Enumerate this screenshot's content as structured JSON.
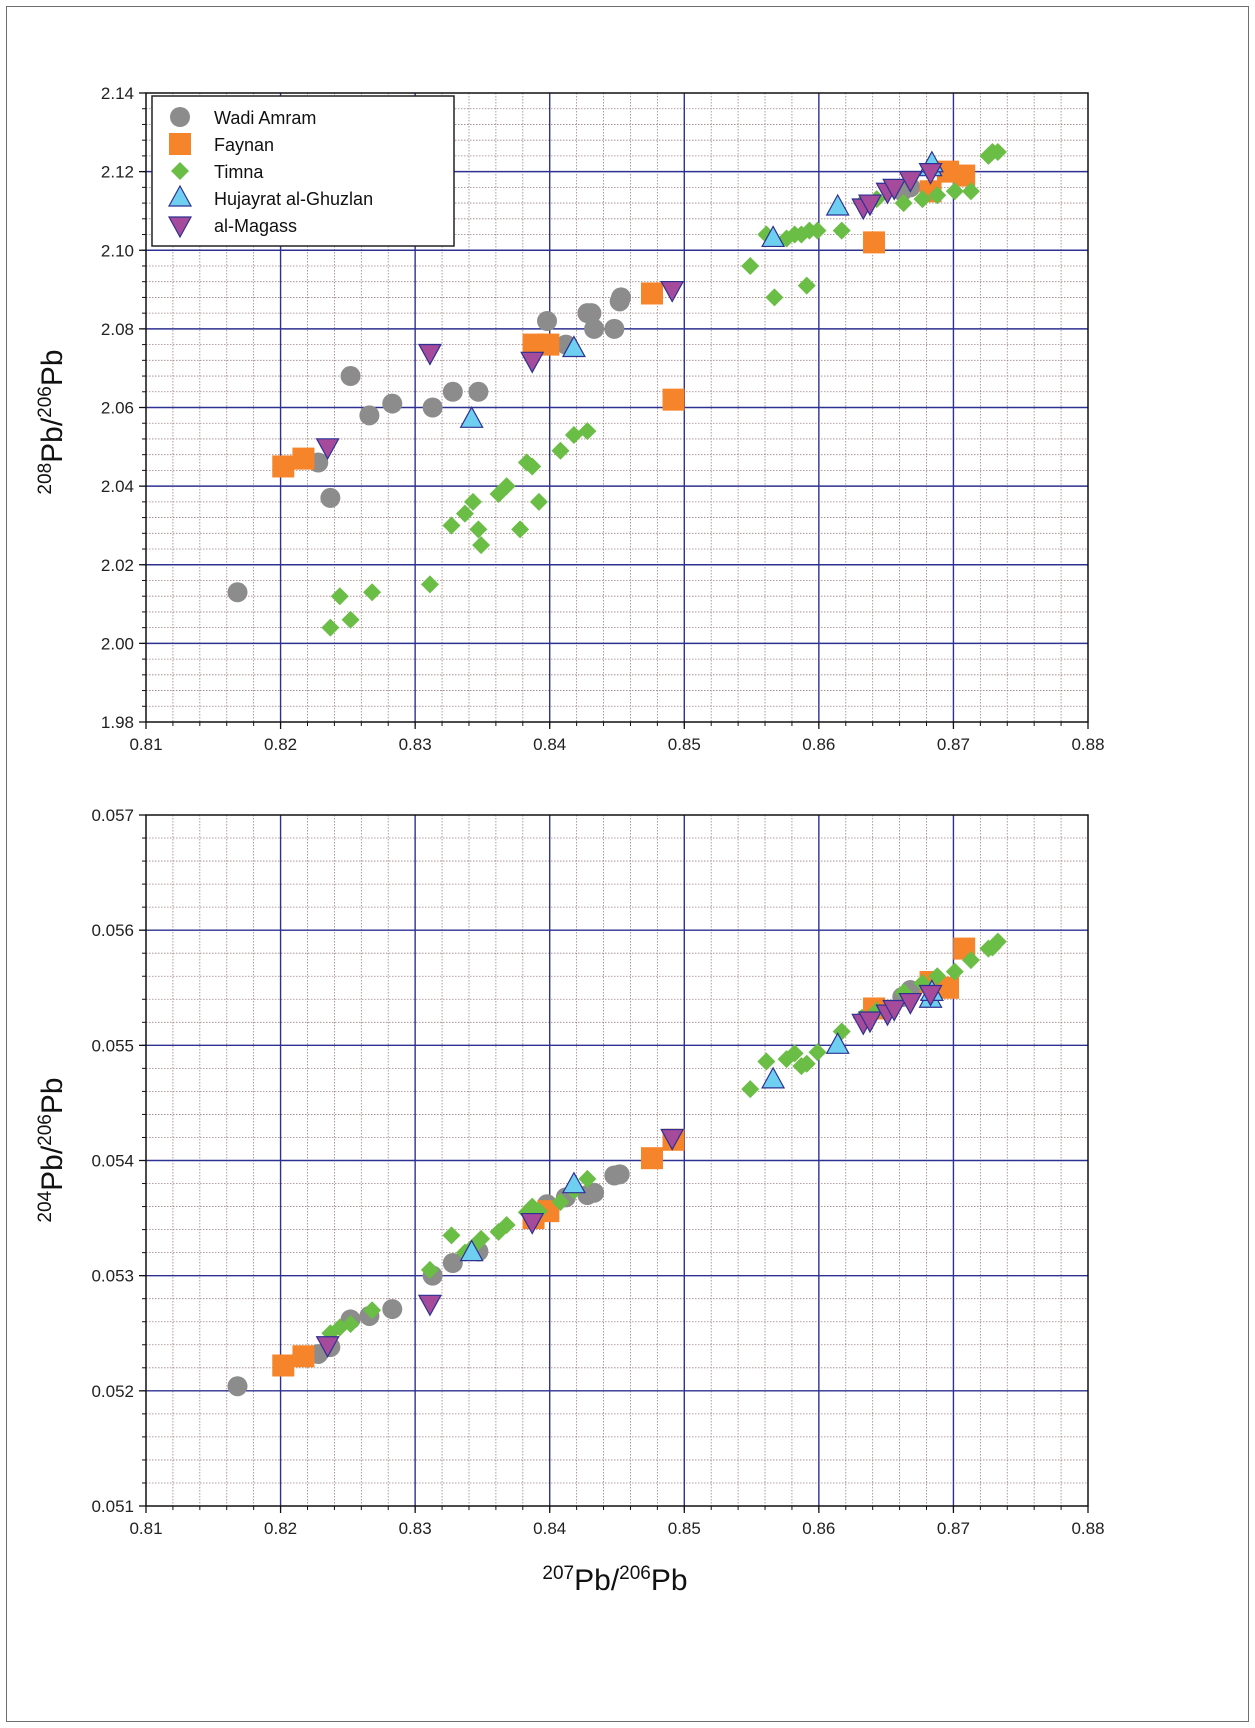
{
  "colors": {
    "wadi_amram": "#8c8c8c",
    "faynan": "#f5842a",
    "timna": "#6abd45",
    "hujayrat": "#6ecff0",
    "magass": "#a64a9b",
    "major_grid": "#2e3192",
    "minor_grid": "#a08080"
  },
  "x_label": {
    "sup1": "207",
    "base1": "Pb/",
    "sup2": "206",
    "base2": "Pb"
  },
  "chart_data": [
    {
      "type": "scatter",
      "name": "top",
      "xlabel": "",
      "ylabel": {
        "sup1": "208",
        "base1": "Pb/",
        "sup2": "206",
        "base2": "Pb"
      },
      "xlim": [
        0.81,
        0.88
      ],
      "ylim": [
        1.98,
        2.14
      ],
      "xticks": [
        "0.81",
        "0.82",
        "0.83",
        "0.84",
        "0.85",
        "0.86",
        "0.87",
        "0.88"
      ],
      "yticks": [
        "1.98",
        "2.00",
        "2.02",
        "2.04",
        "2.06",
        "2.08",
        "2.10",
        "2.12",
        "2.14"
      ],
      "grid": true,
      "legend_position": "top-left",
      "series": [
        {
          "name": "Wadi Amram",
          "marker": "circle",
          "color_key": "wadi_amram",
          "points": [
            [
              0.8168,
              2.013
            ],
            [
              0.8228,
              2.046
            ],
            [
              0.8237,
              2.037
            ],
            [
              0.8252,
              2.068
            ],
            [
              0.8266,
              2.058
            ],
            [
              0.8283,
              2.061
            ],
            [
              0.8313,
              2.06
            ],
            [
              0.8328,
              2.064
            ],
            [
              0.8347,
              2.064
            ],
            [
              0.8398,
              2.082
            ],
            [
              0.8412,
              2.076
            ],
            [
              0.8428,
              2.084
            ],
            [
              0.8431,
              2.084
            ],
            [
              0.8433,
              2.08
            ],
            [
              0.8448,
              2.08
            ],
            [
              0.8452,
              2.087
            ],
            [
              0.8453,
              2.088
            ],
            [
              0.8662,
              2.115
            ],
            [
              0.8668,
              2.116
            ]
          ]
        },
        {
          "name": "Faynan",
          "marker": "square",
          "color_key": "faynan",
          "points": [
            [
              0.8202,
              2.045
            ],
            [
              0.8217,
              2.047
            ],
            [
              0.8388,
              2.076
            ],
            [
              0.8399,
              2.076
            ],
            [
              0.8476,
              2.089
            ],
            [
              0.8492,
              2.062
            ],
            [
              0.8641,
              2.102
            ],
            [
              0.8683,
              2.115
            ],
            [
              0.8696,
              2.12
            ],
            [
              0.8708,
              2.119
            ]
          ]
        },
        {
          "name": "Timna",
          "marker": "diamond",
          "color_key": "timna",
          "points": [
            [
              0.8237,
              2.004
            ],
            [
              0.8244,
              2.012
            ],
            [
              0.8252,
              2.006
            ],
            [
              0.8268,
              2.013
            ],
            [
              0.8311,
              2.015
            ],
            [
              0.8327,
              2.03
            ],
            [
              0.8337,
              2.033
            ],
            [
              0.8343,
              2.036
            ],
            [
              0.8347,
              2.029
            ],
            [
              0.8349,
              2.025
            ],
            [
              0.8362,
              2.038
            ],
            [
              0.8368,
              2.04
            ],
            [
              0.8378,
              2.029
            ],
            [
              0.8383,
              2.046
            ],
            [
              0.8387,
              2.045
            ],
            [
              0.8392,
              2.036
            ],
            [
              0.8408,
              2.049
            ],
            [
              0.8418,
              2.053
            ],
            [
              0.8428,
              2.054
            ],
            [
              0.8549,
              2.096
            ],
            [
              0.8561,
              2.104
            ],
            [
              0.8567,
              2.088
            ],
            [
              0.8576,
              2.103
            ],
            [
              0.8582,
              2.104
            ],
            [
              0.8587,
              2.104
            ],
            [
              0.8591,
              2.091
            ],
            [
              0.8593,
              2.105
            ],
            [
              0.8599,
              2.105
            ],
            [
              0.8617,
              2.105
            ],
            [
              0.8632,
              2.112
            ],
            [
              0.8643,
              2.113
            ],
            [
              0.8663,
              2.112
            ],
            [
              0.8677,
              2.113
            ],
            [
              0.8688,
              2.114
            ],
            [
              0.8701,
              2.115
            ],
            [
              0.8713,
              2.115
            ],
            [
              0.8726,
              2.124
            ],
            [
              0.8729,
              2.125
            ],
            [
              0.8733,
              2.125
            ]
          ]
        },
        {
          "name": "Hujayrat al-Ghuzlan",
          "marker": "triangle-up",
          "color_key": "hujayrat",
          "points": [
            [
              0.8342,
              2.057
            ],
            [
              0.8418,
              2.075
            ],
            [
              0.8566,
              2.103
            ],
            [
              0.8614,
              2.111
            ],
            [
              0.8683,
              2.121
            ],
            [
              0.8684,
              2.122
            ]
          ]
        },
        {
          "name": "al-Magass",
          "marker": "triangle-down",
          "color_key": "magass",
          "points": [
            [
              0.8235,
              2.05
            ],
            [
              0.8311,
              2.074
            ],
            [
              0.8387,
              2.072
            ],
            [
              0.8491,
              2.09
            ],
            [
              0.8633,
              2.111
            ],
            [
              0.8638,
              2.112
            ],
            [
              0.8651,
              2.115
            ],
            [
              0.8656,
              2.116
            ],
            [
              0.8668,
              2.118
            ],
            [
              0.8683,
              2.12
            ]
          ]
        }
      ]
    },
    {
      "type": "scatter",
      "name": "bottom",
      "xlabel": "",
      "ylabel": {
        "sup1": "204",
        "base1": "Pb/",
        "sup2": "206",
        "base2": "Pb"
      },
      "xlim": [
        0.81,
        0.88
      ],
      "ylim": [
        0.051,
        0.057
      ],
      "xticks": [
        "0.81",
        "0.82",
        "0.83",
        "0.84",
        "0.85",
        "0.86",
        "0.87",
        "0.88"
      ],
      "yticks": [
        "0.051",
        "0.052",
        "0.053",
        "0.054",
        "0.055",
        "0.056",
        "0.057"
      ],
      "grid": true,
      "legend_position": "",
      "series": [
        {
          "name": "Wadi Amram",
          "marker": "circle",
          "color_key": "wadi_amram",
          "points": [
            [
              0.8168,
              0.05204
            ],
            [
              0.8228,
              0.05232
            ],
            [
              0.8237,
              0.05238
            ],
            [
              0.8252,
              0.05262
            ],
            [
              0.8266,
              0.05265
            ],
            [
              0.8283,
              0.05271
            ],
            [
              0.8313,
              0.053
            ],
            [
              0.8328,
              0.05311
            ],
            [
              0.8347,
              0.05321
            ],
            [
              0.8398,
              0.05362
            ],
            [
              0.8412,
              0.05368
            ],
            [
              0.8428,
              0.0537
            ],
            [
              0.8433,
              0.05372
            ],
            [
              0.8448,
              0.05387
            ],
            [
              0.8452,
              0.05388
            ],
            [
              0.8662,
              0.05542
            ],
            [
              0.8668,
              0.05548
            ]
          ]
        },
        {
          "name": "Faynan",
          "marker": "square",
          "color_key": "faynan",
          "points": [
            [
              0.8202,
              0.05222
            ],
            [
              0.8217,
              0.0523
            ],
            [
              0.8388,
              0.0535
            ],
            [
              0.8399,
              0.05356
            ],
            [
              0.8476,
              0.05402
            ],
            [
              0.8492,
              0.05418
            ],
            [
              0.8641,
              0.05532
            ],
            [
              0.8683,
              0.05555
            ],
            [
              0.8696,
              0.0555
            ],
            [
              0.8708,
              0.05584
            ]
          ]
        },
        {
          "name": "Timna",
          "marker": "diamond",
          "color_key": "timna",
          "points": [
            [
              0.8237,
              0.0525
            ],
            [
              0.8244,
              0.05255
            ],
            [
              0.8252,
              0.05258
            ],
            [
              0.8268,
              0.0527
            ],
            [
              0.8311,
              0.05305
            ],
            [
              0.8327,
              0.05335
            ],
            [
              0.8337,
              0.0532
            ],
            [
              0.8343,
              0.05325
            ],
            [
              0.8349,
              0.05332
            ],
            [
              0.8362,
              0.05338
            ],
            [
              0.8368,
              0.05344
            ],
            [
              0.8383,
              0.05355
            ],
            [
              0.8387,
              0.0536
            ],
            [
              0.8392,
              0.05356
            ],
            [
              0.8408,
              0.05364
            ],
            [
              0.8418,
              0.05374
            ],
            [
              0.8428,
              0.05384
            ],
            [
              0.8549,
              0.05462
            ],
            [
              0.8561,
              0.05486
            ],
            [
              0.8576,
              0.05488
            ],
            [
              0.8582,
              0.05493
            ],
            [
              0.8587,
              0.05482
            ],
            [
              0.8591,
              0.05484
            ],
            [
              0.8599,
              0.05494
            ],
            [
              0.8617,
              0.05512
            ],
            [
              0.8632,
              0.05524
            ],
            [
              0.8643,
              0.0553
            ],
            [
              0.8663,
              0.05546
            ],
            [
              0.8677,
              0.05554
            ],
            [
              0.8688,
              0.0556
            ],
            [
              0.8701,
              0.05564
            ],
            [
              0.8713,
              0.05574
            ],
            [
              0.8726,
              0.05584
            ],
            [
              0.8729,
              0.05585
            ],
            [
              0.8733,
              0.0559
            ]
          ]
        },
        {
          "name": "Hujayrat al-Ghuzlan",
          "marker": "triangle-up",
          "color_key": "hujayrat",
          "points": [
            [
              0.8342,
              0.0532
            ],
            [
              0.8418,
              0.05379
            ],
            [
              0.8566,
              0.0547
            ],
            [
              0.8614,
              0.055
            ],
            [
              0.8683,
              0.0554
            ],
            [
              0.8684,
              0.05546
            ]
          ]
        },
        {
          "name": "al-Magass",
          "marker": "triangle-down",
          "color_key": "magass",
          "points": [
            [
              0.8235,
              0.0524
            ],
            [
              0.8311,
              0.05276
            ],
            [
              0.8387,
              0.05347
            ],
            [
              0.8491,
              0.0542
            ],
            [
              0.8633,
              0.0552
            ],
            [
              0.8638,
              0.05522
            ],
            [
              0.8651,
              0.05528
            ],
            [
              0.8656,
              0.05532
            ],
            [
              0.8668,
              0.05538
            ],
            [
              0.8683,
              0.05545
            ]
          ]
        }
      ]
    }
  ]
}
